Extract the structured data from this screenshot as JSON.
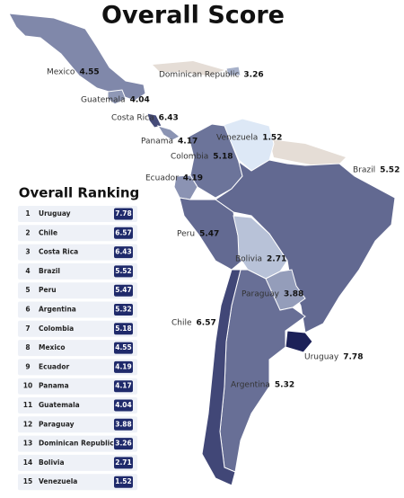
{
  "title": "Overall Score",
  "ranking": {
    "title": "Overall Ranking",
    "rows": [
      {
        "rank": 1,
        "country": "Uruguay",
        "score": 7.78
      },
      {
        "rank": 2,
        "country": "Chile",
        "score": 6.57
      },
      {
        "rank": 3,
        "country": "Costa Rica",
        "score": 6.43
      },
      {
        "rank": 4,
        "country": "Brazil",
        "score": 5.52
      },
      {
        "rank": 5,
        "country": "Peru",
        "score": 5.47
      },
      {
        "rank": 6,
        "country": "Argentina",
        "score": 5.32
      },
      {
        "rank": 7,
        "country": "Colombia",
        "score": 5.18
      },
      {
        "rank": 8,
        "country": "Mexico",
        "score": 4.55
      },
      {
        "rank": 9,
        "country": "Ecuador",
        "score": 4.19
      },
      {
        "rank": 10,
        "country": "Panama",
        "score": 4.17
      },
      {
        "rank": 11,
        "country": "Guatemala",
        "score": 4.04
      },
      {
        "rank": 12,
        "country": "Paraguay",
        "score": 3.88
      },
      {
        "rank": 13,
        "country": "Dominican Republic",
        "score": 3.26
      },
      {
        "rank": 14,
        "country": "Bolivia",
        "score": 2.71
      },
      {
        "rank": 15,
        "country": "Venezuela",
        "score": 1.52
      }
    ]
  }
}
